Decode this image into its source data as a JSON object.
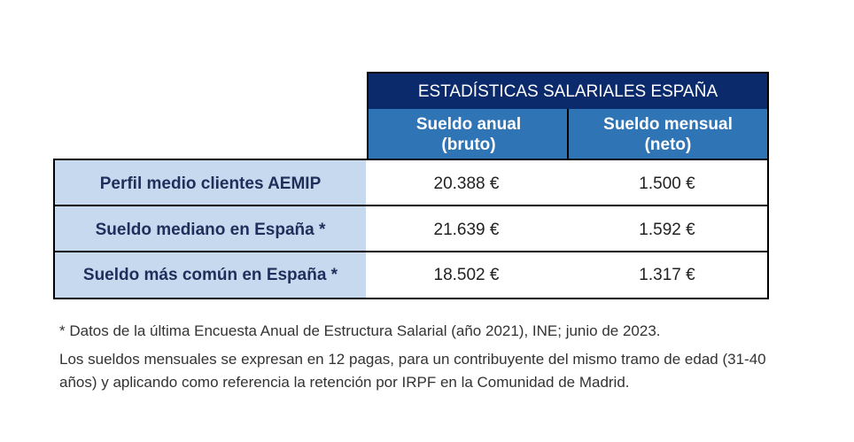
{
  "table": {
    "title": "ESTADÍSTICAS SALARIALES ESPAÑA",
    "columns": [
      [
        "Sueldo anual",
        "(bruto)"
      ],
      [
        "Sueldo mensual",
        "(neto)"
      ]
    ],
    "rows": [
      [
        "Perfil medio clientes AEMIP",
        "20.388 €",
        "1.500 €"
      ],
      [
        "Sueldo mediano en España *",
        "21.639 €",
        "1.592 €"
      ],
      [
        "Sueldo más común en España *",
        "18.502 €",
        "1.317 €"
      ]
    ]
  },
  "notes": [
    "* Datos de la última Encuesta Anual de Estructura Salarial (año 2021), INE; junio de 2023.",
    "Los sueldos mensuales se expresan en 12 pagas, para un contribuyente del mismo tramo de edad (31-40 años) y aplicando como referencia la retención por IRPF en la Comunidad de Madrid."
  ]
}
